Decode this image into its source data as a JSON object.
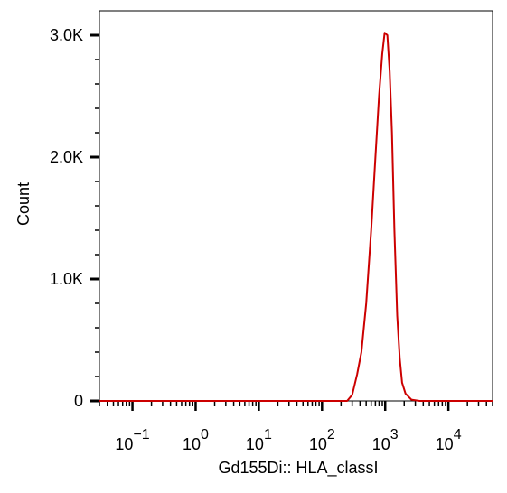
{
  "chart_data": {
    "type": "line",
    "xlabel": "Gd155Di:: HLA_classI",
    "ylabel": "Count",
    "x_scale": "log",
    "x_range": [
      0.03,
      50000
    ],
    "y_range": [
      0,
      3200
    ],
    "x_ticks": [
      {
        "base": "10",
        "exp": "−1",
        "value": 0.1
      },
      {
        "base": "10",
        "exp": "0",
        "value": 1
      },
      {
        "base": "10",
        "exp": "1",
        "value": 10
      },
      {
        "base": "10",
        "exp": "2",
        "value": 100
      },
      {
        "base": "10",
        "exp": "3",
        "value": 1000
      },
      {
        "base": "10",
        "exp": "4",
        "value": 10000
      }
    ],
    "y_ticks": [
      {
        "label": "0",
        "value": 0
      },
      {
        "label": "1.0K",
        "value": 1000
      },
      {
        "label": "2.0K",
        "value": 2000
      },
      {
        "label": "3.0K",
        "value": 3000
      }
    ],
    "series": [
      {
        "color": "#cc0000",
        "points": [
          [
            0.03,
            0
          ],
          [
            100,
            0
          ],
          [
            250,
            0
          ],
          [
            300,
            50
          ],
          [
            360,
            220
          ],
          [
            420,
            400
          ],
          [
            500,
            800
          ],
          [
            600,
            1400
          ],
          [
            700,
            2000
          ],
          [
            800,
            2500
          ],
          [
            900,
            2850
          ],
          [
            980,
            3020
          ],
          [
            1080,
            3000
          ],
          [
            1180,
            2700
          ],
          [
            1280,
            2200
          ],
          [
            1400,
            1400
          ],
          [
            1550,
            700
          ],
          [
            1700,
            350
          ],
          [
            1850,
            150
          ],
          [
            2100,
            60
          ],
          [
            2600,
            10
          ],
          [
            3500,
            0
          ],
          [
            50000,
            0
          ]
        ]
      }
    ],
    "grid": false,
    "legend": "none"
  }
}
